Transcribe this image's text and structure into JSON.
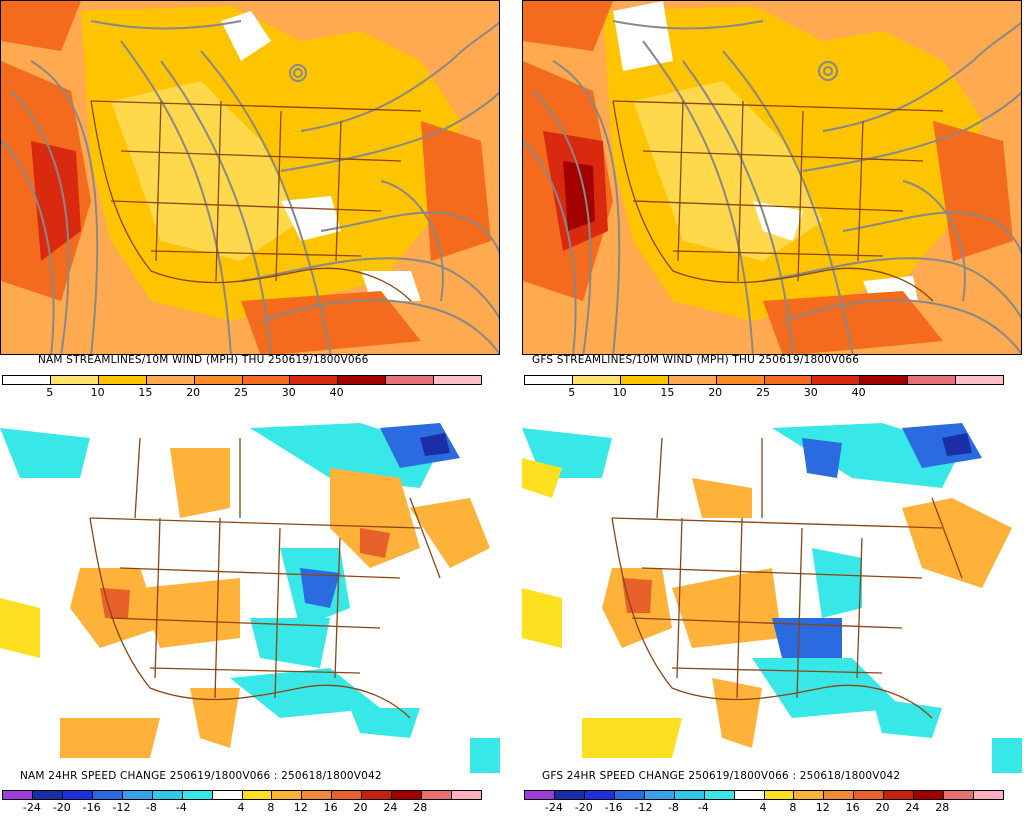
{
  "panels": [
    {
      "id": "nam-stream",
      "title": "NAM STREAMLINES/10M WIND (MPH)  THU 250619/1800V066",
      "colorbar": [
        "#ffffff",
        "#ffe36b",
        "#ffc400",
        "#ffaa50",
        "#ff8a2a",
        "#f46b1e",
        "#d92a10",
        "#a30000",
        "#e8707a",
        "#ffc0cb"
      ],
      "ticks": [
        "5",
        "10",
        "15",
        "20",
        "25",
        "30",
        "40"
      ]
    },
    {
      "id": "gfs-stream",
      "title": "GFS STREAMLINES/10M WIND (MPH)  THU 250619/1800V066",
      "colorbar": [
        "#ffffff",
        "#ffe36b",
        "#ffc400",
        "#ffaa50",
        "#ff8a2a",
        "#f46b1e",
        "#d92a10",
        "#a30000",
        "#e8707a",
        "#ffc0cb"
      ],
      "ticks": [
        "5",
        "10",
        "15",
        "20",
        "25",
        "30",
        "40"
      ]
    },
    {
      "id": "nam-change",
      "title": "NAM 24HR SPEED CHANGE 250619/1800V066 : 250618/1800V042",
      "colorbar": [
        "#9b3fd8",
        "#1a2ea8",
        "#2030e0",
        "#2a6be0",
        "#3aa0ea",
        "#30c8e8",
        "#38e8e8",
        "#ffffff",
        "#ffe020",
        "#ffb23a",
        "#f08a3a",
        "#e8602a",
        "#c82010",
        "#a00000",
        "#e87070",
        "#ffb0c0"
      ],
      "ticks": [
        "-24",
        "-20",
        "-16",
        "-12",
        "-8",
        "-4",
        "4",
        "8",
        "12",
        "16",
        "20",
        "24",
        "28"
      ]
    },
    {
      "id": "gfs-change",
      "title": "GFS 24HR SPEED CHANGE 250619/1800V066 : 250618/1800V042",
      "colorbar": [
        "#9b3fd8",
        "#1a2ea8",
        "#2030e0",
        "#2a6be0",
        "#3aa0ea",
        "#30c8e8",
        "#38e8e8",
        "#ffffff",
        "#ffe020",
        "#ffb23a",
        "#f08a3a",
        "#e8602a",
        "#c82010",
        "#a00000",
        "#e87070",
        "#ffb0c0"
      ],
      "ticks": [
        "-24",
        "-20",
        "-16",
        "-12",
        "-8",
        "-4",
        "4",
        "8",
        "12",
        "16",
        "20",
        "24",
        "28"
      ]
    }
  ],
  "colors": {
    "stream_line": "#888888",
    "borders": "#8b4513",
    "wind_base": "#ffaa50",
    "wind_yellow": "#ffc400",
    "wind_light": "#ffe36b",
    "wind_dark": "#f46b1e",
    "wind_red": "#d92a10",
    "wind_maroon": "#a30000",
    "change_cyan": "#38e8e8",
    "change_blue": "#2a6be0",
    "change_dark": "#1a2ea8",
    "change_orange": "#ffb23a",
    "change_red": "#e8602a"
  }
}
